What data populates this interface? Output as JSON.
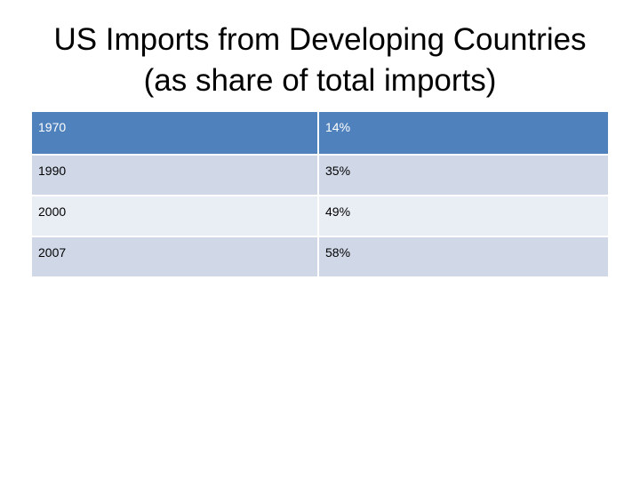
{
  "slide": {
    "title_line1": "US Imports from Developing Countries",
    "title_line2": "(as share of total imports)"
  },
  "table": {
    "rows": [
      {
        "year": "1970",
        "share": "14%"
      },
      {
        "year": "1990",
        "share": "35%"
      },
      {
        "year": "2000",
        "share": "49%"
      },
      {
        "year": "2007",
        "share": "58%"
      }
    ]
  },
  "colors": {
    "header_fill": "#4f81bd",
    "band_dark": "#d0d8e8",
    "band_light": "#e9edf4"
  }
}
